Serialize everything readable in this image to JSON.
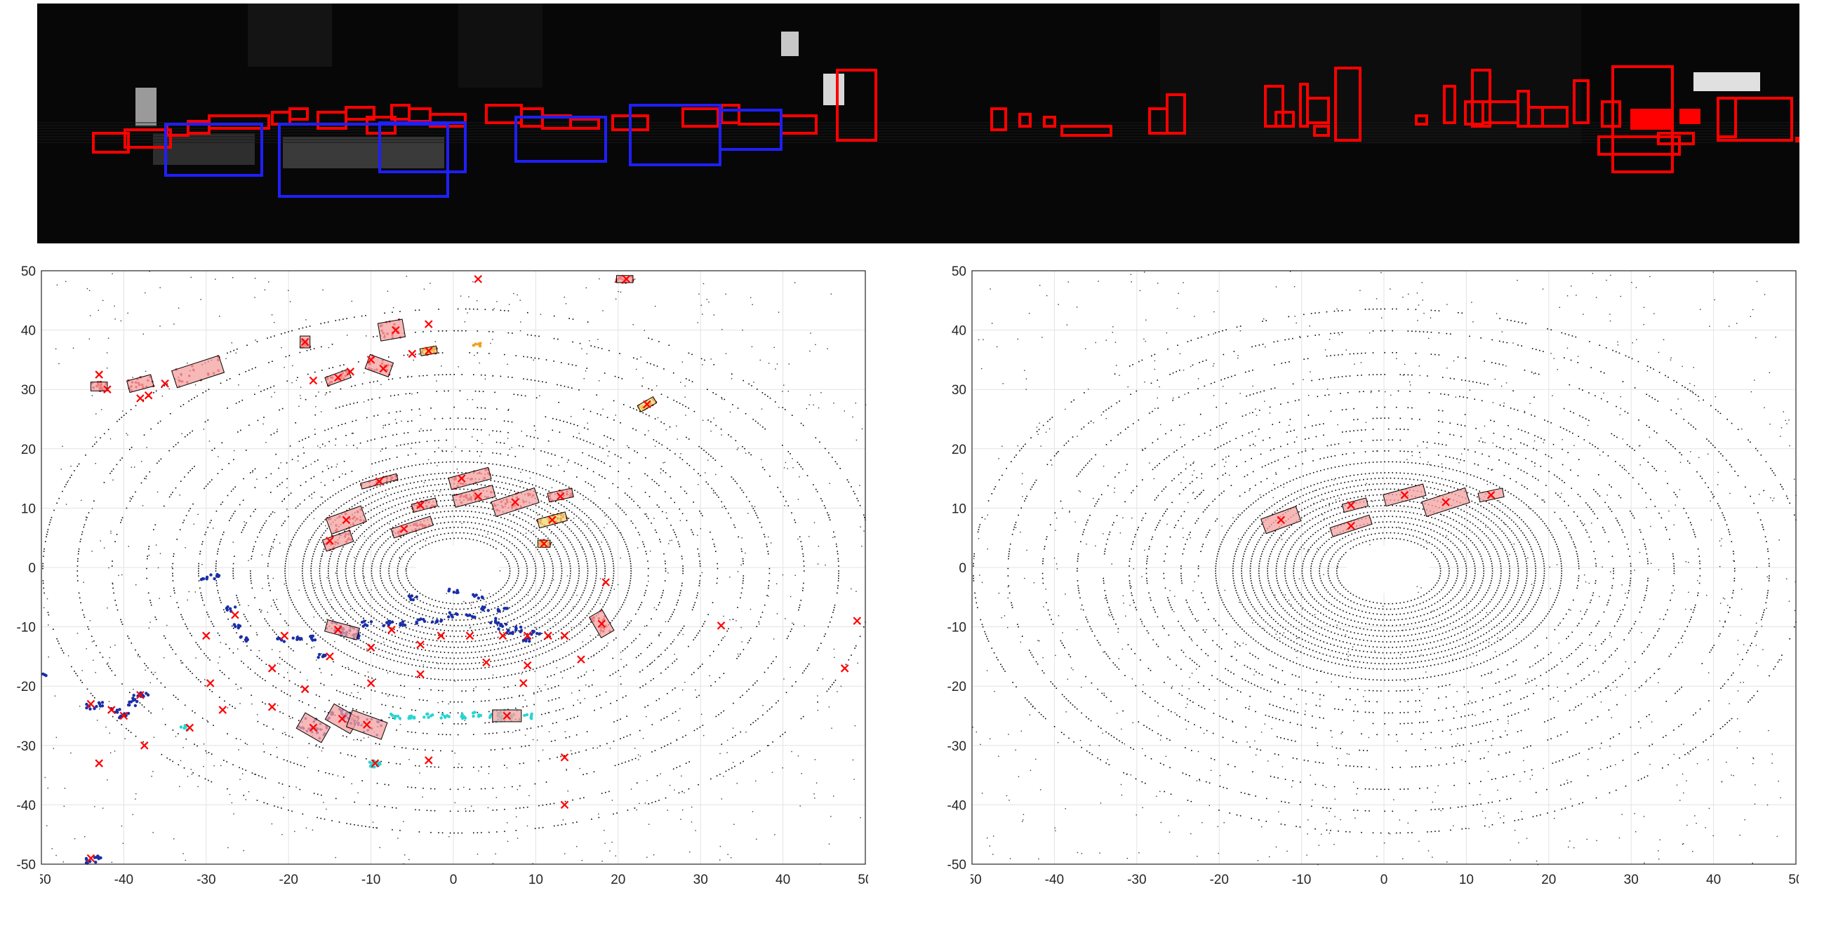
{
  "camera": {
    "background": "#050505",
    "box_colors": {
      "detected": "#ff0000",
      "tracked": "#1f1fff"
    },
    "red_boxes": [
      [
        80,
        185,
        130,
        212
      ],
      [
        125,
        180,
        190,
        205
      ],
      [
        185,
        172,
        215,
        188
      ],
      [
        215,
        168,
        245,
        185
      ],
      [
        245,
        160,
        330,
        178
      ],
      [
        335,
        155,
        360,
        172
      ],
      [
        360,
        150,
        385,
        165
      ],
      [
        400,
        155,
        440,
        178
      ],
      [
        440,
        148,
        480,
        165
      ],
      [
        470,
        162,
        510,
        185
      ],
      [
        505,
        145,
        530,
        165
      ],
      [
        530,
        150,
        560,
        168
      ],
      [
        560,
        158,
        610,
        175
      ],
      [
        640,
        145,
        690,
        170
      ],
      [
        690,
        150,
        720,
        175
      ],
      [
        720,
        160,
        760,
        178
      ],
      [
        760,
        165,
        800,
        178
      ],
      [
        820,
        160,
        870,
        180
      ],
      [
        920,
        150,
        970,
        175
      ],
      [
        975,
        145,
        1000,
        170
      ],
      [
        1000,
        152,
        1060,
        172
      ],
      [
        1060,
        160,
        1110,
        185
      ],
      [
        1140,
        95,
        1195,
        195
      ],
      [
        1360,
        150,
        1380,
        180
      ],
      [
        1400,
        158,
        1415,
        175
      ],
      [
        1435,
        162,
        1450,
        175
      ],
      [
        1460,
        175,
        1530,
        188
      ],
      [
        1585,
        150,
        1610,
        185
      ],
      [
        1610,
        130,
        1635,
        185
      ],
      [
        1750,
        118,
        1775,
        175
      ],
      [
        1765,
        155,
        1790,
        175
      ],
      [
        1800,
        115,
        1810,
        175
      ],
      [
        1810,
        135,
        1840,
        170
      ],
      [
        1820,
        175,
        1840,
        188
      ],
      [
        1850,
        92,
        1885,
        195
      ],
      [
        1965,
        160,
        1980,
        172
      ],
      [
        2005,
        118,
        2020,
        170
      ],
      [
        2035,
        140,
        2060,
        172
      ],
      [
        2045,
        95,
        2070,
        175
      ],
      [
        2060,
        140,
        2110,
        170
      ],
      [
        2110,
        125,
        2125,
        175
      ],
      [
        2125,
        148,
        2145,
        175
      ],
      [
        2145,
        148,
        2180,
        175
      ],
      [
        2190,
        110,
        2210,
        170
      ],
      [
        2230,
        140,
        2255,
        175
      ],
      [
        2245,
        90,
        2330,
        240
      ],
      [
        2225,
        190,
        2340,
        215
      ],
      [
        2310,
        185,
        2360,
        200
      ],
      [
        2395,
        135,
        2500,
        195
      ],
      [
        2395,
        135,
        2420,
        190
      ],
      [
        2540,
        182,
        2555,
        195
      ],
      [
        1140,
        95,
        1195,
        195
      ]
    ],
    "blue_boxes": [
      [
        183,
        172,
        320,
        245
      ],
      [
        345,
        172,
        585,
        275
      ],
      [
        488,
        170,
        610,
        240
      ],
      [
        682,
        162,
        810,
        225
      ],
      [
        845,
        145,
        973,
        230
      ],
      [
        973,
        152,
        1060,
        208
      ]
    ],
    "red_fills": [
      [
        2270,
        150,
        2330,
        180
      ],
      [
        2340,
        150,
        2370,
        172
      ],
      [
        2505,
        190,
        2520,
        198
      ]
    ]
  },
  "figure": {
    "axis_ticks": {
      "x": [
        -50,
        -40,
        -30,
        -20,
        -10,
        0,
        10,
        20,
        30,
        40,
        50
      ],
      "y": [
        -50,
        -40,
        -30,
        -20,
        -10,
        0,
        10,
        20,
        30,
        40,
        50
      ]
    },
    "grid": true,
    "colors": {
      "point": "#000000",
      "marker": "#ff0000",
      "box_fill": "#f4a0a0",
      "box_fill_yellow": "#f0d870",
      "box_edge": "#000000",
      "cluster_red": "#d01818",
      "cluster_blue": "#1a2fa8",
      "cluster_cyan": "#27d4d4",
      "cluster_orange": "#f0a020"
    }
  },
  "chart_data": [
    {
      "type": "scatter",
      "title": "",
      "xlabel": "",
      "ylabel": "",
      "xlim": [
        -50,
        50
      ],
      "ylim": [
        -50,
        50
      ],
      "grid": true,
      "detections": [
        {
          "x": -38.0,
          "y": 31.0,
          "w": 3.0,
          "h": 2.0,
          "angle": 15,
          "fill": "box_fill",
          "cluster": "cluster_red"
        },
        {
          "x": -31.0,
          "y": 33.0,
          "w": 6.0,
          "h": 3.0,
          "angle": 18,
          "fill": "box_fill",
          "cluster": "cluster_red"
        },
        {
          "x": -43.0,
          "y": 30.5,
          "w": 2.0,
          "h": 1.5,
          "angle": 0,
          "fill": "box_fill",
          "cluster": "cluster_red"
        },
        {
          "x": -18.0,
          "y": 38.0,
          "w": 1.2,
          "h": 2.0,
          "angle": 0,
          "fill": "box_fill",
          "cluster": "cluster_red"
        },
        {
          "x": -14.0,
          "y": 32.0,
          "w": 3.0,
          "h": 1.5,
          "angle": 20,
          "fill": "box_fill",
          "cluster": "cluster_red"
        },
        {
          "x": -9.0,
          "y": 34.0,
          "w": 3.0,
          "h": 2.5,
          "angle": -20,
          "fill": "box_fill",
          "cluster": "cluster_red"
        },
        {
          "x": -7.5,
          "y": 40.0,
          "w": 3.0,
          "h": 3.0,
          "angle": 10,
          "fill": "box_fill",
          "cluster": "cluster_red"
        },
        {
          "x": -3.0,
          "y": 36.5,
          "w": 2.0,
          "h": 1.2,
          "angle": 10,
          "fill": "box_fill_yellow",
          "cluster": "cluster_red"
        },
        {
          "x": 20.8,
          "y": 48.6,
          "w": 2.0,
          "h": 1.2,
          "angle": 0,
          "fill": "box_fill",
          "cluster": "cluster_red"
        },
        {
          "x": 23.5,
          "y": 27.5,
          "w": 2.2,
          "h": 1.2,
          "angle": 30,
          "fill": "box_fill_yellow",
          "cluster": "cluster_red"
        },
        {
          "x": -9.0,
          "y": 14.5,
          "w": 4.5,
          "h": 1.0,
          "angle": 15,
          "fill": "box_fill",
          "cluster": "cluster_red"
        },
        {
          "x": -13.0,
          "y": 8.0,
          "w": 4.5,
          "h": 2.8,
          "angle": 20,
          "fill": "box_fill",
          "cluster": "cluster_red"
        },
        {
          "x": -14.0,
          "y": 4.5,
          "w": 3.5,
          "h": 2.0,
          "angle": 20,
          "fill": "box_fill",
          "cluster": "cluster_red"
        },
        {
          "x": -5.0,
          "y": 6.8,
          "w": 5.0,
          "h": 1.6,
          "angle": 18,
          "fill": "box_fill",
          "cluster": "cluster_red"
        },
        {
          "x": -3.5,
          "y": 10.5,
          "w": 3.0,
          "h": 1.4,
          "angle": 15,
          "fill": "box_fill",
          "cluster": "cluster_red"
        },
        {
          "x": 2.0,
          "y": 15.0,
          "w": 5.0,
          "h": 2.0,
          "angle": 15,
          "fill": "box_fill",
          "cluster": "cluster_red"
        },
        {
          "x": 2.5,
          "y": 12.0,
          "w": 5.0,
          "h": 2.0,
          "angle": 15,
          "fill": "box_fill",
          "cluster": "cluster_red"
        },
        {
          "x": 7.5,
          "y": 11.0,
          "w": 5.5,
          "h": 2.6,
          "angle": 18,
          "fill": "box_fill",
          "cluster": "cluster_red"
        },
        {
          "x": 13.0,
          "y": 12.2,
          "w": 3.0,
          "h": 1.5,
          "angle": 12,
          "fill": "box_fill",
          "cluster": "cluster_red"
        },
        {
          "x": 12.0,
          "y": 8.0,
          "w": 3.5,
          "h": 1.5,
          "angle": 15,
          "fill": "box_fill_yellow",
          "cluster": "cluster_red"
        },
        {
          "x": 11.0,
          "y": 4.0,
          "w": 1.5,
          "h": 1.2,
          "angle": 0,
          "fill": "box_fill_yellow",
          "cluster": "cluster_red"
        },
        {
          "x": 18.0,
          "y": -9.5,
          "w": 1.8,
          "h": 4.0,
          "angle": 30,
          "fill": "box_fill",
          "cluster": "cluster_red"
        },
        {
          "x": -13.5,
          "y": -10.5,
          "w": 4.0,
          "h": 2.0,
          "angle": -15,
          "fill": "box_fill",
          "cluster": "cluster_blue"
        },
        {
          "x": -17.0,
          "y": -27.0,
          "w": 3.5,
          "h": 3.0,
          "angle": -30,
          "fill": "box_fill",
          "cluster": "cluster_blue"
        },
        {
          "x": -13.5,
          "y": -25.5,
          "w": 3.5,
          "h": 3.0,
          "angle": -30,
          "fill": "box_fill",
          "cluster": "cluster_blue"
        },
        {
          "x": -10.5,
          "y": -26.5,
          "w": 4.5,
          "h": 3.0,
          "angle": -20,
          "fill": "box_fill",
          "cluster": "cluster_blue"
        },
        {
          "x": 6.5,
          "y": -25.0,
          "w": 3.5,
          "h": 2.0,
          "angle": 0,
          "fill": "box_fill",
          "cluster": "cluster_cyan"
        }
      ],
      "markers": [
        [
          -43,
          32.5
        ],
        [
          -42,
          30
        ],
        [
          -38,
          28.5
        ],
        [
          -35,
          31
        ],
        [
          -37,
          29
        ],
        [
          -18,
          38
        ],
        [
          -17,
          31.5
        ],
        [
          -14,
          32
        ],
        [
          -12.5,
          33
        ],
        [
          -10,
          35
        ],
        [
          -8.5,
          33.5
        ],
        [
          -5,
          36
        ],
        [
          -3,
          36.5
        ],
        [
          -3,
          41
        ],
        [
          -7,
          40
        ],
        [
          3,
          48.6
        ],
        [
          21,
          48.6
        ],
        [
          23.5,
          27.5
        ],
        [
          -9,
          14.5
        ],
        [
          -13,
          8
        ],
        [
          -15,
          4.5
        ],
        [
          -6,
          6.5
        ],
        [
          -4,
          10.5
        ],
        [
          1,
          15
        ],
        [
          3,
          12
        ],
        [
          7.5,
          11
        ],
        [
          13,
          12
        ],
        [
          12,
          8
        ],
        [
          11,
          4
        ],
        [
          18.5,
          -2.5
        ],
        [
          18,
          -9.5
        ],
        [
          32.5,
          -9.8
        ],
        [
          49,
          -9
        ],
        [
          47.5,
          -17
        ],
        [
          -30,
          -11.5
        ],
        [
          -26.5,
          -8
        ],
        [
          -22,
          -17
        ],
        [
          -20.5,
          -11.5
        ],
        [
          -15,
          -15
        ],
        [
          -14,
          -10.5
        ],
        [
          -10,
          -13.5
        ],
        [
          -7.5,
          -10.5
        ],
        [
          -4,
          -13
        ],
        [
          -1.5,
          -11.5
        ],
        [
          2,
          -11.5
        ],
        [
          6,
          -11.5
        ],
        [
          9,
          -11.5
        ],
        [
          11.5,
          -11.5
        ],
        [
          13.5,
          -11.5
        ],
        [
          15.5,
          -15.5
        ],
        [
          9,
          -16.5
        ],
        [
          4,
          -16
        ],
        [
          -4,
          -18
        ],
        [
          -10,
          -19.5
        ],
        [
          -18,
          -20.5
        ],
        [
          -29.5,
          -19.5
        ],
        [
          -28,
          -24
        ],
        [
          -22,
          -23.5
        ],
        [
          -44,
          -23
        ],
        [
          -41.5,
          -24
        ],
        [
          -40,
          -25
        ],
        [
          -38,
          -21.5
        ],
        [
          -37.5,
          -30
        ],
        [
          -32,
          -27
        ],
        [
          -17,
          -27
        ],
        [
          -13.5,
          -25.5
        ],
        [
          -10.5,
          -26.5
        ],
        [
          6.5,
          -25
        ],
        [
          8.5,
          -19.5
        ],
        [
          -43,
          -33
        ],
        [
          -9.5,
          -33
        ],
        [
          -3,
          -32.5
        ],
        [
          13.5,
          -32
        ],
        [
          13.5,
          -40
        ],
        [
          -44,
          -49
        ]
      ],
      "clusters": {
        "cluster_blue": [
          [
            -30,
            -2
          ],
          [
            -29,
            -1.5
          ],
          [
            -27,
            -7
          ],
          [
            -26,
            -10
          ],
          [
            -25.5,
            -12
          ],
          [
            -21,
            -12.2
          ],
          [
            -19,
            -12
          ],
          [
            -17,
            -11.8
          ],
          [
            -16,
            -15
          ],
          [
            -14,
            -10.5
          ],
          [
            -13,
            -11
          ],
          [
            -12,
            -11.5
          ],
          [
            -10.5,
            -9.5
          ],
          [
            -8,
            -9.5
          ],
          [
            -6,
            -9.5
          ],
          [
            -4,
            -9
          ],
          [
            -2,
            -9
          ],
          [
            0,
            -8
          ],
          [
            2,
            -8
          ],
          [
            4,
            -7
          ],
          [
            5,
            -9
          ],
          [
            6,
            -10
          ],
          [
            7,
            -11
          ],
          [
            8,
            -10.5
          ],
          [
            9,
            -12
          ],
          [
            10,
            -11
          ],
          [
            -44,
            -23.5
          ],
          [
            -43,
            -23
          ],
          [
            -41,
            -24
          ],
          [
            -40,
            -25
          ],
          [
            -38.5,
            -22
          ],
          [
            -37.5,
            -21.5
          ],
          [
            -39,
            -23
          ],
          [
            -44,
            -49.5
          ],
          [
            -43,
            -49
          ],
          [
            -50,
            -18
          ],
          [
            -5,
            -5
          ],
          [
            0,
            -4
          ],
          [
            3,
            -5
          ],
          [
            6,
            -7
          ],
          [
            -17,
            -27.5
          ],
          [
            -13,
            -25
          ]
        ],
        "cluster_cyan": [
          [
            -7,
            -25
          ],
          [
            -5,
            -25.2
          ],
          [
            -3,
            -25
          ],
          [
            -1,
            -25.1
          ],
          [
            1,
            -25
          ],
          [
            3,
            -24.8
          ],
          [
            5,
            -24.9
          ],
          [
            7,
            -25
          ],
          [
            9,
            -25
          ],
          [
            -10,
            -33.2
          ],
          [
            -9,
            -33
          ],
          [
            -32.5,
            -27
          ]
        ],
        "cluster_orange": [
          [
            3,
            37.5
          ],
          [
            -2.8,
            36.8
          ],
          [
            12,
            8.5
          ],
          [
            23,
            27
          ]
        ]
      }
    },
    {
      "type": "scatter",
      "title": "",
      "xlabel": "",
      "ylabel": "",
      "xlim": [
        -50,
        50
      ],
      "ylim": [
        -50,
        50
      ],
      "grid": true,
      "detections": [
        {
          "x": -12.5,
          "y": 8.0,
          "w": 4.5,
          "h": 2.6,
          "angle": 20,
          "fill": "box_fill"
        },
        {
          "x": -4.0,
          "y": 7.0,
          "w": 5.0,
          "h": 1.6,
          "angle": 18,
          "fill": "box_fill"
        },
        {
          "x": -3.5,
          "y": 10.5,
          "w": 3.0,
          "h": 1.4,
          "angle": 15,
          "fill": "box_fill"
        },
        {
          "x": 2.5,
          "y": 12.2,
          "w": 5.0,
          "h": 2.0,
          "angle": 15,
          "fill": "box_fill"
        },
        {
          "x": 7.5,
          "y": 11.0,
          "w": 5.5,
          "h": 2.6,
          "angle": 18,
          "fill": "box_fill"
        },
        {
          "x": 13.0,
          "y": 12.2,
          "w": 3.0,
          "h": 1.5,
          "angle": 12,
          "fill": "box_fill"
        }
      ],
      "markers": [
        [
          -12.5,
          8
        ],
        [
          -4,
          7
        ],
        [
          -4,
          10.5
        ],
        [
          2.5,
          12.2
        ],
        [
          7.5,
          11
        ],
        [
          13,
          12.2
        ]
      ],
      "clusters": {}
    }
  ]
}
